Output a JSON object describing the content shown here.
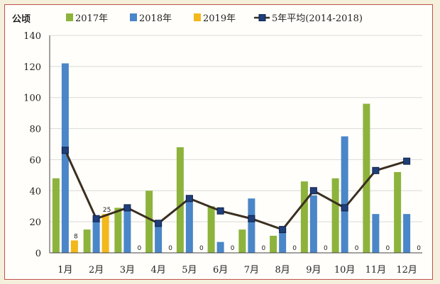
{
  "chart_data": {
    "type": "bar",
    "unit_label": "公顷",
    "categories": [
      "1月",
      "2月",
      "3月",
      "4月",
      "5月",
      "6月",
      "7月",
      "8月",
      "9月",
      "10月",
      "11月",
      "12月"
    ],
    "series": [
      {
        "name": "2017年",
        "type": "bar",
        "color": "#8db33c",
        "values": [
          48,
          15,
          29,
          40,
          68,
          30,
          15,
          11,
          46,
          48,
          96,
          52
        ]
      },
      {
        "name": "2018年",
        "type": "bar",
        "color": "#4a86c8",
        "values": [
          122,
          22,
          30,
          19,
          37,
          7,
          35,
          16,
          37,
          75,
          25,
          25
        ]
      },
      {
        "name": "2019年",
        "type": "bar",
        "color": "#f2b81c",
        "values": [
          8,
          25,
          0,
          0,
          0,
          0,
          0,
          0,
          0,
          0,
          0,
          0
        ],
        "data_labels": [
          "8",
          "25",
          "0",
          "0",
          "0",
          "0",
          "0",
          "0",
          "0",
          "0",
          "0",
          "0"
        ]
      },
      {
        "name": "5年平均(2014-2018)",
        "type": "line",
        "color": "#3b2f20",
        "marker_color": "#1f3e7a",
        "values": [
          66,
          22,
          29,
          19,
          35,
          27,
          22,
          15,
          40,
          29,
          53,
          59
        ]
      }
    ],
    "ylim": [
      0,
      140
    ],
    "yticks": [
      "0",
      "20",
      "40",
      "60",
      "80",
      "100",
      "120",
      "140"
    ],
    "grid": true,
    "legend": "top"
  }
}
